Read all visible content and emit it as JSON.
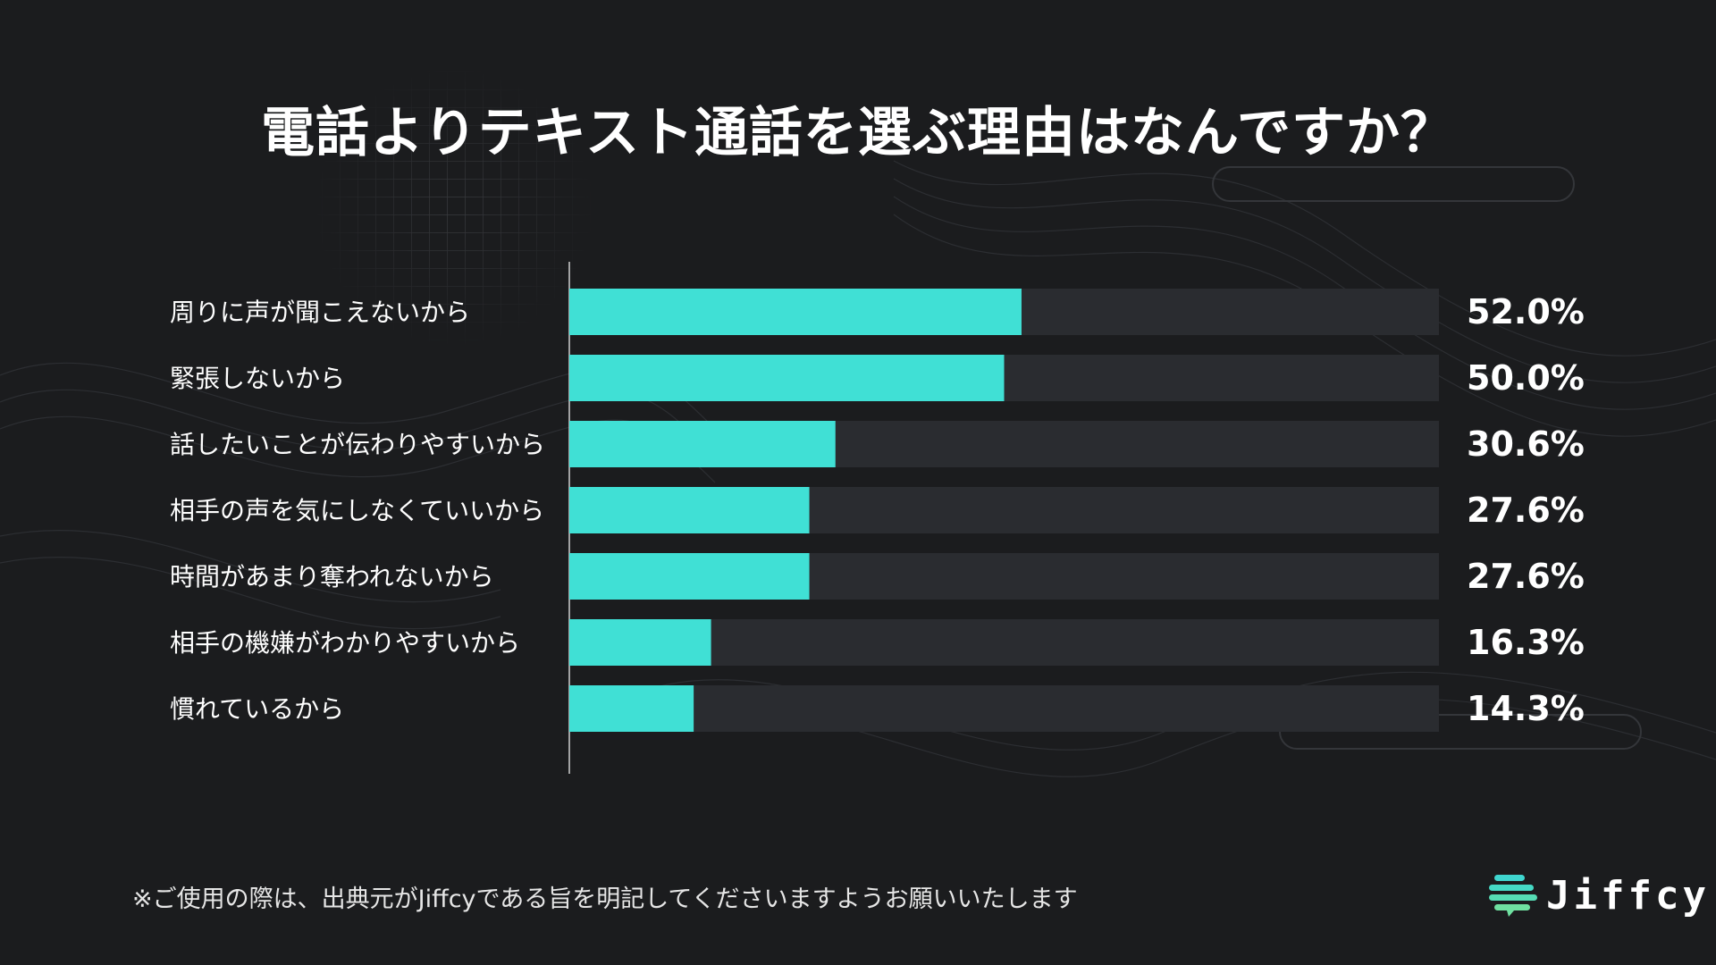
{
  "chart_data": {
    "type": "bar",
    "orientation": "horizontal",
    "title": "電話よりテキスト通話を選ぶ理由はなんですか？",
    "categories": [
      "周りに声が聞こえないから",
      "緊張しないから",
      "話したいことが伝わりやすいから",
      "相手の声を気にしなくていいから",
      "時間があまり奪われないから",
      "相手の機嫌がわかりやすいから",
      "慣れているから"
    ],
    "values": [
      52.0,
      50.0,
      30.6,
      27.6,
      27.6,
      16.3,
      14.3
    ],
    "value_labels": [
      "52.0%",
      "50.0%",
      "30.6%",
      "27.6%",
      "27.6%",
      "16.3%",
      "14.3%"
    ],
    "xlim": [
      0,
      100
    ],
    "grid": false,
    "colors": {
      "bar": "#40e0d5",
      "track": "#2a2c30",
      "background": "#1b1c1e"
    }
  },
  "footer": {
    "note": "※ご使用の際は、出典元がJiffcyである旨を明記してくださいますようお願いいたします"
  },
  "logo": {
    "text": "Jiffcy",
    "icon": "jiffcy-logo-icon",
    "colors": [
      "#3fd6cf",
      "#6fe0a0"
    ]
  }
}
